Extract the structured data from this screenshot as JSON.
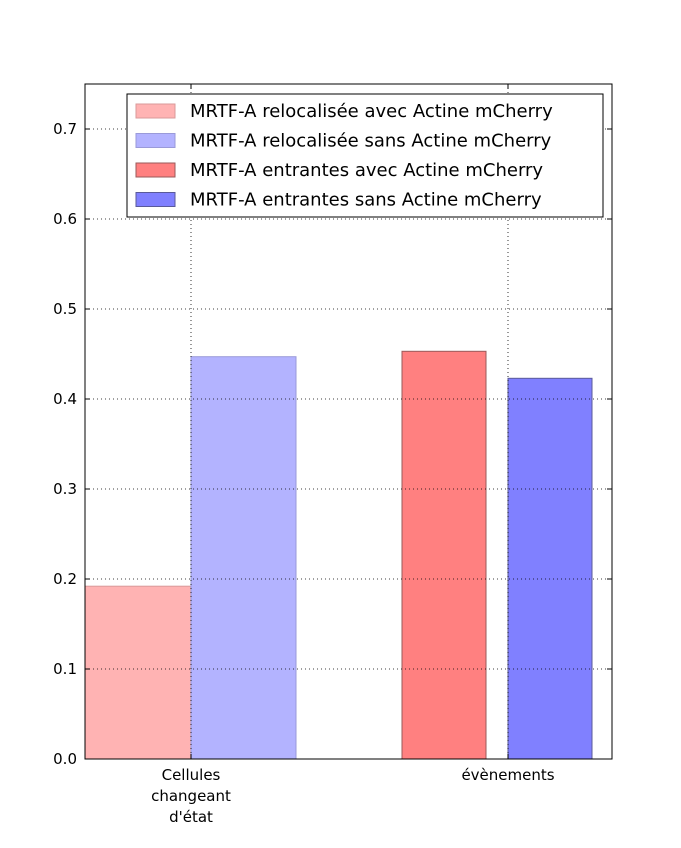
{
  "chart_data": {
    "type": "bar",
    "title": "",
    "xlabel": "",
    "ylabel": "",
    "ylim": [
      0,
      0.75
    ],
    "yticks": [
      0.0,
      0.1,
      0.2,
      0.3,
      0.4,
      0.5,
      0.6,
      0.7
    ],
    "ytick_labels": [
      "0.0",
      "0.1",
      "0.2",
      "0.3",
      "0.4",
      "0.5",
      "0.6",
      "0.7"
    ],
    "grid": true,
    "legend_position": "top-right",
    "categories": [
      {
        "label_lines": [
          "Cellules",
          "changeant",
          "d'état"
        ]
      },
      {
        "label_lines": [
          "évènements"
        ]
      }
    ],
    "series": [
      {
        "name": "MRTF-A relocalisée avec Actine mCherry",
        "color": "#ffb3b3",
        "edge": "#d99a9a",
        "category": 0,
        "value": 0.192
      },
      {
        "name": "MRTF-A relocalisée sans Actine mCherry",
        "color": "#b3b3ff",
        "edge": "#9a9ad9",
        "category": 0,
        "value": 0.447
      },
      {
        "name": "MRTF-A entrantes avec Actine mCherry",
        "color": "#ff8080",
        "edge": "#9a5a5a",
        "category": 1,
        "value": 0.453
      },
      {
        "name": "MRTF-A entrantes sans Actine mCherry",
        "color": "#8080ff",
        "edge": "#5a5a9a",
        "category": 1,
        "value": 0.423
      }
    ]
  }
}
